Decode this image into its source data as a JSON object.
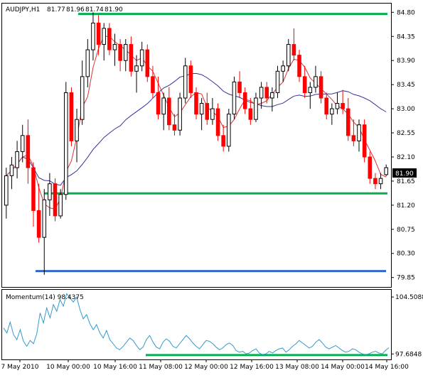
{
  "chart_data": [
    {
      "type": "candlestick",
      "title": "AUDJPY,H1  81.77 81.96 81.74 81.90",
      "symbol": "AUDJPY,H1",
      "ohlc_header": [
        "81.77",
        "81.96",
        "81.74",
        "81.90"
      ],
      "current_price_label": "81.90",
      "ylim": [
        79.7,
        84.95
      ],
      "y_ticks": [
        "84.80",
        "84.35",
        "83.90",
        "83.45",
        "83.00",
        "82.55",
        "82.10",
        "81.65",
        "81.20",
        "80.75",
        "80.30",
        "79.85"
      ],
      "x_ticks": [
        "7 May 2010",
        "10 May 00:00",
        "10 May 16:00",
        "11 May 08:00",
        "12 May 00:00",
        "12 May 16:00",
        "13 May 08:00",
        "14 May 00:00",
        "14 May 16:00"
      ],
      "candles": [
        [
          81.2,
          81.9,
          80.95,
          81.75
        ],
        [
          81.75,
          82.1,
          81.5,
          81.95
        ],
        [
          81.9,
          82.4,
          81.7,
          82.2
        ],
        [
          82.2,
          82.7,
          82.0,
          82.5
        ],
        [
          82.5,
          82.8,
          81.6,
          81.9
        ],
        [
          81.9,
          82.0,
          80.8,
          81.1
        ],
        [
          81.1,
          81.6,
          80.5,
          80.6
        ],
        [
          80.6,
          81.5,
          79.9,
          81.3
        ],
        [
          81.3,
          81.8,
          81.0,
          81.6
        ],
        [
          81.6,
          81.7,
          80.9,
          81.0
        ],
        [
          81.0,
          81.5,
          80.95,
          81.4
        ],
        [
          81.4,
          83.5,
          81.3,
          83.3
        ],
        [
          83.3,
          83.4,
          82.3,
          82.4
        ],
        [
          82.4,
          83.0,
          82.0,
          82.8
        ],
        [
          82.8,
          83.9,
          82.7,
          83.6
        ],
        [
          83.6,
          84.3,
          83.4,
          84.1
        ],
        [
          84.1,
          84.8,
          83.9,
          84.6
        ],
        [
          84.6,
          84.75,
          84.0,
          84.2
        ],
        [
          84.2,
          84.6,
          83.9,
          84.5
        ],
        [
          84.5,
          84.6,
          84.0,
          84.1
        ],
        [
          84.1,
          84.4,
          83.8,
          84.2
        ],
        [
          84.2,
          84.3,
          83.7,
          83.9
        ],
        [
          83.9,
          84.3,
          83.7,
          84.2
        ],
        [
          84.2,
          84.35,
          83.6,
          83.7
        ],
        [
          83.7,
          84.0,
          83.3,
          83.8
        ],
        [
          83.8,
          84.25,
          83.7,
          84.1
        ],
        [
          84.1,
          84.2,
          83.5,
          83.6
        ],
        [
          83.6,
          83.8,
          83.2,
          83.3
        ],
        [
          83.3,
          83.6,
          82.8,
          82.9
        ],
        [
          82.9,
          83.3,
          82.6,
          83.2
        ],
        [
          83.2,
          83.4,
          82.6,
          82.7
        ],
        [
          82.7,
          82.9,
          82.5,
          82.6
        ],
        [
          82.6,
          83.3,
          82.5,
          83.2
        ],
        [
          83.2,
          83.95,
          83.1,
          83.8
        ],
        [
          83.8,
          83.9,
          83.2,
          83.3
        ],
        [
          83.3,
          83.4,
          82.8,
          82.9
        ],
        [
          82.9,
          83.2,
          82.6,
          83.1
        ],
        [
          83.1,
          83.3,
          82.7,
          82.8
        ],
        [
          82.8,
          83.2,
          82.7,
          83.0
        ],
        [
          83.0,
          83.1,
          82.4,
          82.5
        ],
        [
          82.5,
          82.7,
          82.2,
          82.3
        ],
        [
          82.3,
          83.0,
          82.2,
          82.9
        ],
        [
          82.9,
          83.6,
          82.8,
          83.5
        ],
        [
          83.5,
          83.7,
          83.2,
          83.3
        ],
        [
          83.3,
          83.4,
          82.9,
          83.0
        ],
        [
          83.0,
          83.2,
          82.7,
          82.8
        ],
        [
          82.8,
          83.3,
          82.75,
          83.2
        ],
        [
          83.2,
          83.5,
          83.0,
          83.4
        ],
        [
          83.4,
          83.5,
          83.1,
          83.2
        ],
        [
          83.2,
          83.4,
          82.95,
          83.3
        ],
        [
          83.3,
          83.8,
          83.2,
          83.7
        ],
        [
          83.7,
          83.9,
          83.5,
          83.8
        ],
        [
          83.8,
          84.3,
          83.7,
          84.2
        ],
        [
          84.2,
          84.5,
          83.9,
          84.0
        ],
        [
          84.0,
          84.1,
          83.5,
          83.6
        ],
        [
          83.6,
          83.8,
          83.2,
          83.3
        ],
        [
          83.3,
          83.5,
          83.0,
          83.4
        ],
        [
          83.4,
          83.8,
          83.3,
          83.6
        ],
        [
          83.6,
          83.7,
          83.1,
          83.2
        ],
        [
          83.2,
          83.3,
          82.8,
          82.9
        ],
        [
          82.9,
          83.1,
          82.7,
          83.0
        ],
        [
          83.0,
          83.3,
          82.9,
          83.1
        ],
        [
          83.1,
          83.35,
          82.9,
          83.0
        ],
        [
          83.0,
          83.2,
          82.4,
          82.5
        ],
        [
          82.5,
          82.8,
          82.3,
          82.4
        ],
        [
          82.4,
          82.8,
          82.2,
          82.7
        ],
        [
          82.7,
          82.8,
          82.0,
          82.1
        ],
        [
          82.1,
          82.2,
          81.6,
          81.7
        ],
        [
          81.7,
          81.8,
          81.5,
          81.6
        ],
        [
          81.6,
          81.8,
          81.5,
          81.7
        ],
        [
          81.77,
          81.96,
          81.74,
          81.9
        ]
      ],
      "series": [
        {
          "name": "Momentum(14)",
          "value_label": "98.4375"
        }
      ],
      "indicator": {
        "label": "Momentum(14) 98.4375",
        "ylim": [
          97.2,
          105.2
        ],
        "y_ticks": [
          "104.5088",
          "97.6848"
        ],
        "values": [
          100.8,
          100.2,
          101.5,
          100.0,
          99.4,
          100.6,
          99.2,
          98.6,
          99.3,
          98.9,
          100.1,
          102.6,
          101.4,
          103.2,
          102.0,
          103.6,
          102.8,
          104.2,
          103.4,
          104.9,
          104.4,
          103.9,
          104.5,
          103.0,
          101.9,
          102.4,
          101.3,
          100.6,
          101.2,
          100.2,
          99.6,
          100.5,
          99.4,
          98.9,
          98.4,
          98.2,
          98.6,
          99.1,
          99.6,
          99.3,
          98.7,
          98.2,
          98.5,
          99.4,
          99.9,
          99.1,
          98.5,
          98.3,
          99.1,
          99.5,
          99.2,
          98.6,
          98.4,
          98.9,
          99.4,
          99.9,
          99.5,
          99.0,
          98.6,
          98.3,
          98.8,
          99.3,
          99.2,
          98.9,
          98.5,
          98.2,
          98.4,
          98.8,
          99.0,
          98.7,
          98.1,
          97.9,
          98.0,
          97.7,
          97.8,
          98.1,
          98.3,
          97.8,
          97.6,
          97.7,
          98.0,
          97.8,
          98.1,
          98.3,
          98.4,
          97.9,
          98.2,
          98.6,
          98.9,
          99.3,
          99.0,
          98.7,
          98.4,
          98.6,
          99.1,
          99.4,
          99.0,
          98.5,
          98.3,
          98.5,
          98.7,
          98.4,
          98.1,
          97.9,
          98.0,
          98.3,
          98.2,
          97.9,
          97.7,
          97.6,
          97.7,
          97.9,
          98.0,
          97.8,
          97.7,
          98.1,
          98.4375
        ],
        "support_level": 97.55
      },
      "lines": {
        "resistance": 84.77,
        "support": 81.42,
        "floor": 79.97
      },
      "colors": {
        "bull": "#000000",
        "bear": "#ff0000",
        "bull_mid": "#66cc33",
        "fast_ma": "#e03030",
        "slow_ma": "#333399",
        "green_line": "#00b050",
        "blue_line": "#3366cc",
        "momentum": "#3399cc",
        "price_box_bg": "#000000",
        "price_box_fg": "#ffffff"
      }
    }
  ]
}
